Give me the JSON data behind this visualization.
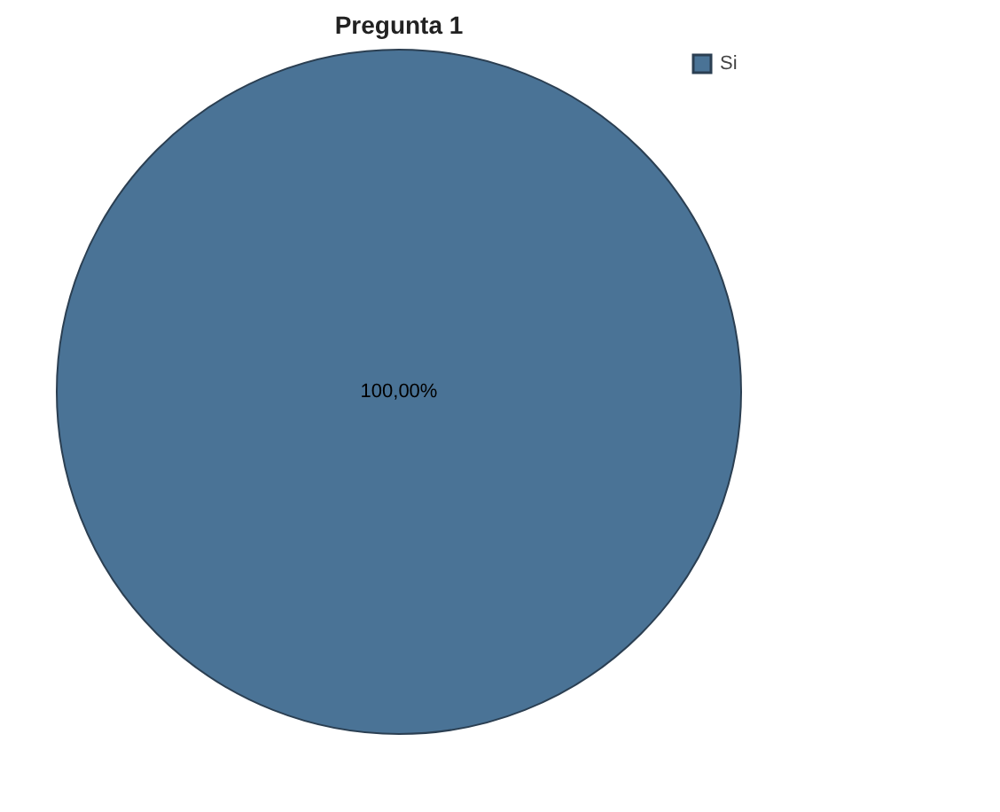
{
  "chart_data": {
    "type": "pie",
    "title": "Pregunta 1",
    "categories": [
      "Si"
    ],
    "values": [
      100
    ],
    "colors": [
      "#4a7396"
    ],
    "value_labels": [
      "100,00%"
    ],
    "legend": "top right"
  }
}
